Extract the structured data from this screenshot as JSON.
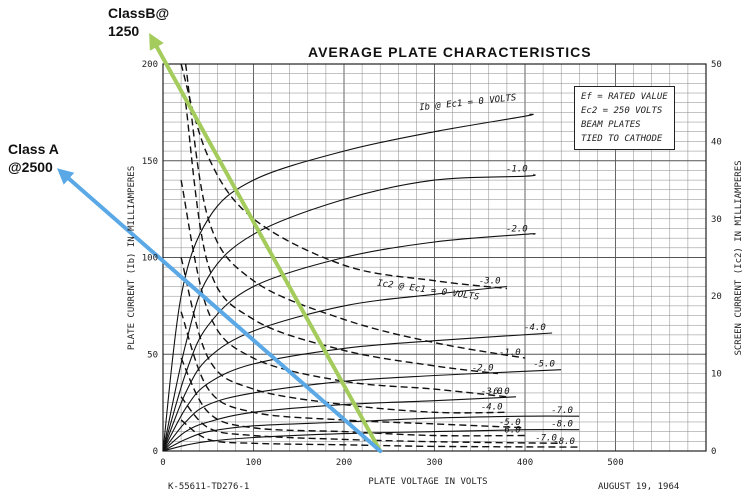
{
  "chart_data": {
    "type": "line",
    "title": "AVERAGE PLATE CHARACTERISTICS",
    "xlabel": "PLATE VOLTAGE IN VOLTS",
    "ylabel": "PLATE CURRENT (Ib) IN MILLIAMPERES",
    "y2label": "SCREEN CURRENT (Ic2) IN MILLIAMPERES",
    "xlim": [
      0,
      600
    ],
    "ylim": [
      0,
      200
    ],
    "y2lim": [
      0,
      50
    ],
    "xticks": [
      "0",
      "100",
      "200",
      "300",
      "400",
      "500"
    ],
    "yticks": [
      "0",
      "50",
      "100",
      "150",
      "200"
    ],
    "y2ticks": [
      "0",
      "10",
      "20",
      "30",
      "40",
      "50"
    ],
    "grid": true,
    "legend_box": [
      "Ef = RATED VALUE",
      "Ec2 = 250 VOLTS",
      "BEAM PLATES",
      "TIED TO CATHODE"
    ],
    "plate_current_series": [
      {
        "name": "Ib @ Ec1 = 0 VOLTS",
        "x": [
          0,
          20,
          50,
          100,
          200,
          300,
          400,
          405
        ],
        "y": [
          0,
          80,
          120,
          140,
          155,
          165,
          173,
          174
        ]
      },
      {
        "name": "-1.0",
        "x": [
          0,
          25,
          50,
          100,
          200,
          300,
          400,
          410
        ],
        "y": [
          0,
          55,
          90,
          112,
          130,
          140,
          142,
          143
        ]
      },
      {
        "name": "-2.0",
        "x": [
          0,
          25,
          50,
          100,
          200,
          300,
          400,
          410
        ],
        "y": [
          0,
          40,
          65,
          85,
          100,
          108,
          112,
          112
        ]
      },
      {
        "name": "-3.0",
        "x": [
          0,
          25,
          50,
          100,
          200,
          300,
          380
        ],
        "y": [
          0,
          30,
          48,
          62,
          75,
          81,
          85
        ]
      },
      {
        "name": "-4.0",
        "x": [
          0,
          25,
          50,
          100,
          200,
          300,
          430
        ],
        "y": [
          0,
          22,
          35,
          45,
          53,
          57,
          61
        ]
      },
      {
        "name": "-5.0",
        "x": [
          0,
          25,
          50,
          100,
          200,
          300,
          440
        ],
        "y": [
          0,
          15,
          24,
          30,
          36,
          39,
          42
        ]
      },
      {
        "name": "-6.0",
        "x": [
          0,
          25,
          50,
          100,
          200,
          300,
          390
        ],
        "y": [
          0,
          10,
          15,
          20,
          24,
          26,
          28
        ]
      },
      {
        "name": "-7.0",
        "x": [
          0,
          25,
          50,
          100,
          200,
          300,
          400,
          460
        ],
        "y": [
          0,
          6,
          10,
          13,
          15,
          17,
          18,
          18
        ]
      },
      {
        "name": "-8.0",
        "x": [
          0,
          25,
          50,
          100,
          200,
          300,
          400,
          460
        ],
        "y": [
          0,
          3,
          5,
          7,
          9,
          10,
          11,
          11
        ]
      }
    ],
    "screen_current_series": [
      {
        "name": "Ic2 @ Ec1 = 0 VOLTS",
        "x": [
          20,
          50,
          100,
          200,
          300,
          380
        ],
        "y2": [
          50,
          38,
          30,
          24,
          22,
          21
        ]
      },
      {
        "name": "-1.0",
        "x": [
          25,
          50,
          100,
          200,
          300,
          400
        ],
        "y2": [
          50,
          30,
          22,
          17,
          14,
          12
        ]
      },
      {
        "name": "-2.0",
        "x": [
          25,
          50,
          100,
          200,
          300,
          370
        ],
        "y2": [
          45,
          24,
          17,
          13,
          11,
          10
        ]
      },
      {
        "name": "-3.0",
        "x": [
          20,
          50,
          100,
          200,
          300,
          380
        ],
        "y2": [
          35,
          18,
          12,
          9,
          8,
          7
        ]
      },
      {
        "name": "-4.0",
        "x": [
          20,
          50,
          100,
          200,
          300,
          380
        ],
        "y2": [
          25,
          12,
          8,
          6,
          5,
          5
        ]
      },
      {
        "name": "-5.0",
        "x": [
          20,
          50,
          100,
          200,
          300,
          400
        ],
        "y2": [
          18,
          8,
          5,
          4,
          3.5,
          3
        ]
      },
      {
        "name": "-6.0",
        "x": [
          20,
          50,
          100,
          200,
          300,
          400
        ],
        "y2": [
          12,
          5,
          3,
          2.5,
          2,
          2
        ]
      },
      {
        "name": "-7.0",
        "x": [
          20,
          50,
          100,
          200,
          300,
          440
        ],
        "y2": [
          7,
          3,
          2,
          1.5,
          1.2,
          1
        ]
      },
      {
        "name": "-8.0",
        "x": [
          20,
          50,
          100,
          200,
          300,
          460
        ],
        "y2": [
          4,
          1.5,
          1,
          0.8,
          0.6,
          0.5
        ]
      }
    ],
    "load_lines": [
      {
        "label": "ClassB@ 1250",
        "color": "#a4cc5c",
        "x": [
          0,
          240
        ],
        "y": [
          200,
          0
        ]
      },
      {
        "label": "Class A @2500",
        "color": "#5aa9e6",
        "x": [
          0,
          240
        ],
        "y": [
          100,
          0
        ]
      }
    ]
  },
  "annotations": {
    "classb_line1": "ClassB@",
    "classb_line2": "1250",
    "classa_line1": "Class A",
    "classa_line2": "@2500"
  },
  "footer": {
    "left": "K-55611-TD276-1",
    "right": "AUGUST 19, 1964"
  }
}
